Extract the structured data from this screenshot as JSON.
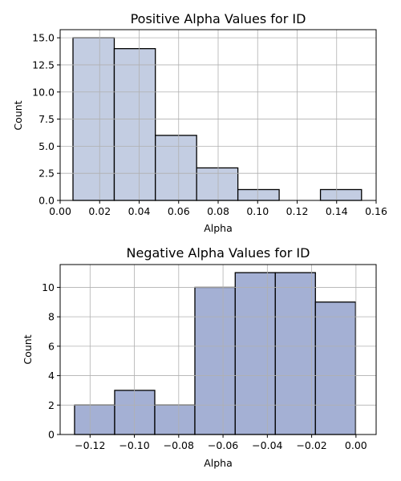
{
  "chart_data": [
    {
      "type": "bar",
      "title": "Positive Alpha Values for ID",
      "xlabel": "Alpha",
      "ylabel": "Count",
      "xlim": [
        0.0,
        0.16
      ],
      "ylim": [
        0,
        15.75
      ],
      "xticks": [
        "0.00",
        "0.02",
        "0.04",
        "0.06",
        "0.08",
        "0.10",
        "0.12",
        "0.14",
        "0.16"
      ],
      "xtick_values": [
        0.0,
        0.02,
        0.04,
        0.06,
        0.08,
        0.1,
        0.12,
        0.14,
        0.16
      ],
      "yticks": [
        "0.0",
        "2.5",
        "5.0",
        "7.5",
        "10.0",
        "12.5",
        "15.0"
      ],
      "ytick_values": [
        0.0,
        2.5,
        5.0,
        7.5,
        10.0,
        12.5,
        15.0
      ],
      "bins": [
        {
          "x0": 0.0065,
          "x1": 0.0274,
          "count": 15
        },
        {
          "x0": 0.0274,
          "x1": 0.0482,
          "count": 14
        },
        {
          "x0": 0.0482,
          "x1": 0.0691,
          "count": 6
        },
        {
          "x0": 0.0691,
          "x1": 0.09,
          "count": 3
        },
        {
          "x0": 0.09,
          "x1": 0.1109,
          "count": 1
        },
        {
          "x0": 0.1109,
          "x1": 0.1318,
          "count": 0
        },
        {
          "x0": 0.1318,
          "x1": 0.1526,
          "count": 1
        }
      ],
      "grid": true,
      "bar_color": "#c3cde2",
      "edge_color": "#000000"
    },
    {
      "type": "bar",
      "title": "Negative Alpha Values for ID",
      "xlabel": "Alpha",
      "ylabel": "Count",
      "xlim": [
        -0.1335,
        0.0091
      ],
      "ylim": [
        0,
        11.55
      ],
      "xticks": [
        "−0.12",
        "−0.10",
        "−0.08",
        "−0.06",
        "−0.04",
        "−0.02",
        "0.00"
      ],
      "xtick_values": [
        -0.12,
        -0.1,
        -0.08,
        -0.06,
        -0.04,
        -0.02,
        0.0
      ],
      "yticks": [
        "0",
        "2",
        "4",
        "6",
        "8",
        "10"
      ],
      "ytick_values": [
        0,
        2,
        4,
        6,
        8,
        10
      ],
      "bins": [
        {
          "x0": -0.127,
          "x1": -0.1089,
          "count": 2
        },
        {
          "x0": -0.1089,
          "x1": -0.0908,
          "count": 3
        },
        {
          "x0": -0.0908,
          "x1": -0.0727,
          "count": 2
        },
        {
          "x0": -0.0727,
          "x1": -0.0545,
          "count": 10
        },
        {
          "x0": -0.0545,
          "x1": -0.0364,
          "count": 11
        },
        {
          "x0": -0.0364,
          "x1": -0.0183,
          "count": 11
        },
        {
          "x0": -0.0183,
          "x1": -0.0002,
          "count": 9
        }
      ],
      "grid": true,
      "bar_color": "#a4b0d4",
      "edge_color": "#000000"
    }
  ]
}
